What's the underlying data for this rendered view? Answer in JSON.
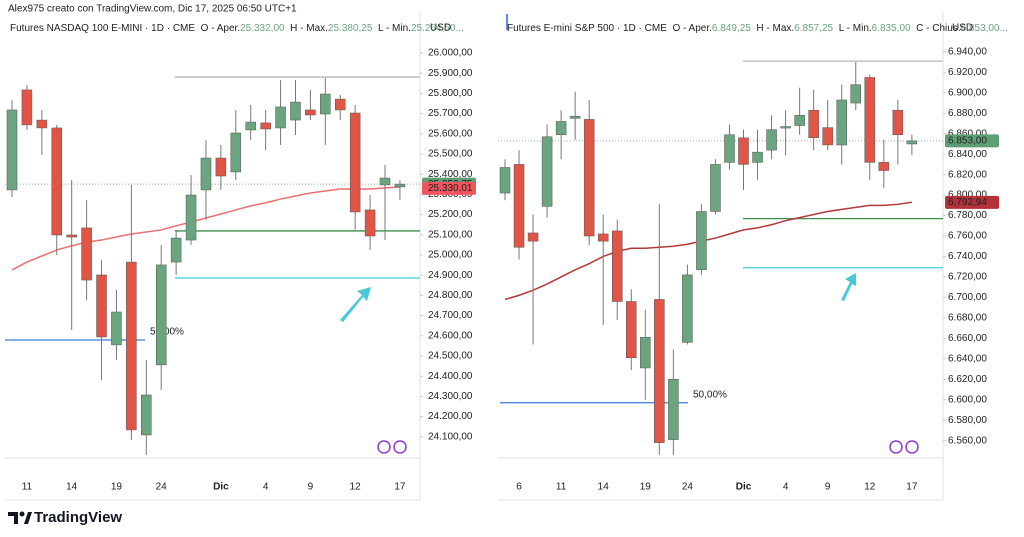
{
  "header": {
    "credit": "Alex975 creato con TradingView.com, Dic 17, 2025 06:50 UTC+1"
  },
  "footer": {
    "brand": "TradingView"
  },
  "chart_data": [
    {
      "type": "candlestick",
      "title": "Futures NASDAQ 100 E-MINI · 1D · CME",
      "ohlc_text": [
        {
          "label": "O - Aper.",
          "value": "25.332,00"
        },
        {
          "label": "H - Max.",
          "value": "25.380,25"
        },
        {
          "label": "L - Min.",
          "value": "25.264,50..."
        }
      ],
      "currency": "USD",
      "categories": [
        null,
        "11",
        null,
        null,
        "14",
        null,
        null,
        "19",
        null,
        null,
        "24",
        null,
        null,
        null,
        "Dic",
        null,
        null,
        "4",
        null,
        null,
        "9",
        null,
        null,
        "12",
        null,
        null,
        "17"
      ],
      "open": [
        25322,
        25817,
        25668,
        25629,
        25099,
        25134,
        24901,
        24555,
        24965,
        24109,
        24456,
        24965,
        25074,
        25322,
        25480,
        25411,
        25619,
        25654,
        25629,
        25668,
        25718,
        25698,
        25772,
        25703,
        25223,
        25347,
        25337
      ],
      "high": [
        25767,
        25842,
        25718,
        25644,
        25371,
        25272,
        24975,
        24827,
        25347,
        24480,
        25050,
        25124,
        25396,
        25569,
        25545,
        25718,
        25743,
        25718,
        25866,
        25866,
        25817,
        25876,
        25792,
        25743,
        25297,
        25446,
        25371
      ],
      "low": [
        25287,
        25619,
        25495,
        25000,
        24629,
        24777,
        24381,
        24480,
        24084,
        24010,
        24332,
        24901,
        25050,
        25173,
        25322,
        25371,
        25569,
        25520,
        25545,
        25594,
        25668,
        25545,
        25668,
        25124,
        25025,
        25074,
        25272
      ],
      "close": [
        25718,
        25644,
        25629,
        25099,
        25089,
        24876,
        24594,
        24718,
        24134,
        24307,
        24951,
        25084,
        25297,
        25480,
        25391,
        25604,
        25658,
        25624,
        25733,
        25757,
        25693,
        25797,
        25718,
        25213,
        25094,
        25381,
        25351
      ],
      "ma": [
        24926,
        24965,
        24995,
        25025,
        25045,
        25064,
        25074,
        25089,
        25104,
        25114,
        25124,
        25144,
        25163,
        25183,
        25203,
        25223,
        25243,
        25258,
        25277,
        25292,
        25307,
        25317,
        25327,
        25327,
        25327,
        25332,
        25337
      ],
      "up_color": "#6aa57f",
      "down_color": "#e05545",
      "ma_color": "#ec6f72",
      "levels": [
        {
          "value": 25881,
          "color": "#b5b5b5"
        },
        {
          "value": 25119,
          "color": "#3f8f4c"
        },
        {
          "value": 24886,
          "color": "#3ccfd0"
        },
        {
          "value": 24579,
          "color": "#3b7dd8",
          "label": "50,00%"
        }
      ],
      "last_price": {
        "value": 25350.75,
        "label": "25.350,75",
        "color": "#5e9e74"
      },
      "ma_last": {
        "value": 25330.01,
        "label": "25.330,01",
        "color": "#f0555e"
      },
      "ylim": [
        23995,
        26203
      ],
      "yticks": [
        {
          "value": 24100,
          "label": "24.100,00"
        },
        {
          "value": 24200,
          "label": "24.200,00"
        },
        {
          "value": 24300,
          "label": "24.300,00"
        },
        {
          "value": 24400,
          "label": "24.400,00"
        },
        {
          "value": 24500,
          "label": "24.500,00"
        },
        {
          "value": 24600,
          "label": "24.600,00"
        },
        {
          "value": 24700,
          "label": "24.700,00"
        },
        {
          "value": 24800,
          "label": "24.800,00"
        },
        {
          "value": 24900,
          "label": "24.900,00"
        },
        {
          "value": 25000,
          "label": "25.000,00"
        },
        {
          "value": 25100,
          "label": "25.100,00"
        },
        {
          "value": 25200,
          "label": "25.200,00"
        },
        {
          "value": 25300,
          "label": "25.300,00"
        },
        {
          "value": 25400,
          "label": "25.400,00"
        },
        {
          "value": 25500,
          "label": "25.500,00"
        },
        {
          "value": 25600,
          "label": "25.600,00"
        },
        {
          "value": 25700,
          "label": "25.700,00"
        },
        {
          "value": 25800,
          "label": "25.800,00"
        },
        {
          "value": 25900,
          "label": "25.900,00"
        },
        {
          "value": 26000,
          "label": "26.000,00"
        }
      ]
    },
    {
      "type": "candlestick",
      "title": "Futures E-mini S&P 500 · 1D · CME",
      "ohlc_text": [
        {
          "label": "O - Aper.",
          "value": "6.849,25"
        },
        {
          "label": "H - Max.",
          "value": "6.857,25"
        },
        {
          "label": "L - Min.",
          "value": "6.835,00"
        },
        {
          "label": "C - Chius.",
          "value": "6.853,00..."
        }
      ],
      "currency": "USD",
      "categories": [
        null,
        "6",
        null,
        null,
        "11",
        null,
        null,
        "14",
        null,
        null,
        "19",
        null,
        null,
        "24",
        null,
        null,
        null,
        "Dic",
        null,
        null,
        "4",
        null,
        null,
        "9",
        null,
        null,
        "12",
        null,
        null,
        "17"
      ],
      "open": [
        6802,
        6830,
        6763,
        6789,
        6859,
        6875,
        6874,
        6762,
        6765,
        6696,
        6631,
        6698,
        6561,
        6656,
        6727,
        6784,
        6832,
        6856,
        6832,
        6844,
        6866,
        6868,
        6883,
        6866,
        6849,
        6890,
        6915,
        6832,
        6883,
        6850
      ],
      "high": [
        6835,
        6844,
        6781,
        6869,
        6883,
        6901,
        6893,
        6781,
        6776,
        6708,
        6688,
        6791,
        6649,
        6732,
        6791,
        6835,
        6869,
        6864,
        6864,
        6878,
        6883,
        6905,
        6903,
        6893,
        6908,
        6930,
        6918,
        6854,
        6893,
        6859
      ],
      "low": [
        6795,
        6737,
        6654,
        6778,
        6835,
        6854,
        6751,
        6673,
        6678,
        6629,
        6600,
        6546,
        6546,
        6654,
        6722,
        6781,
        6825,
        6805,
        6815,
        6835,
        6839,
        6859,
        6844,
        6844,
        6830,
        6883,
        6815,
        6807,
        6830,
        6839
      ],
      "close": [
        6827,
        6749,
        6755,
        6857,
        6872,
        6877,
        6760,
        6755,
        6696,
        6641,
        6661,
        6558,
        6620,
        6722,
        6784,
        6830,
        6859,
        6830,
        6842,
        6864,
        6867,
        6878,
        6856,
        6849,
        6893,
        6908,
        6832,
        6824,
        6859,
        6853
      ],
      "ma": [
        6698,
        6702,
        6707,
        6713,
        6720,
        6727,
        6733,
        6740,
        6745,
        6748,
        6748,
        6749,
        6750,
        6752,
        6755,
        6758,
        6762,
        6766,
        6768,
        6771,
        6775,
        6778,
        6781,
        6784,
        6786,
        6788,
        6790,
        6790,
        6791,
        6793
      ],
      "up_color": "#6aa57f",
      "down_color": "#e05545",
      "ma_color": "#b33838",
      "levels": [
        {
          "value": 6931,
          "color": "#b5b5b5"
        },
        {
          "value": 6777,
          "color": "#3f8f4c"
        },
        {
          "value": 6729,
          "color": "#3ccfd0"
        },
        {
          "value": 6597,
          "color": "#3b7dd8",
          "label": "50,00%"
        }
      ],
      "last_price": {
        "value": 6853,
        "label": "6.853,00",
        "color": "#5e9e74"
      },
      "ma_last": {
        "value": 6792.94,
        "label": "6.792,94",
        "color": "#b3323a"
      },
      "ylim": [
        6543,
        6979
      ],
      "yticks": [
        {
          "value": 6560,
          "label": "6.560,00"
        },
        {
          "value": 6580,
          "label": "6.580,00"
        },
        {
          "value": 6600,
          "label": "6.600,00"
        },
        {
          "value": 6620,
          "label": "6.620,00"
        },
        {
          "value": 6640,
          "label": "6.640,00"
        },
        {
          "value": 6660,
          "label": "6.660,00"
        },
        {
          "value": 6680,
          "label": "6.680,00"
        },
        {
          "value": 6700,
          "label": "6.700,00"
        },
        {
          "value": 6720,
          "label": "6.720,00"
        },
        {
          "value": 6740,
          "label": "6.740,00"
        },
        {
          "value": 6760,
          "label": "6.760,00"
        },
        {
          "value": 6780,
          "label": "6.780,00"
        },
        {
          "value": 6800,
          "label": "6.800,00"
        },
        {
          "value": 6820,
          "label": "6.820,00"
        },
        {
          "value": 6840,
          "label": "6.840,00"
        },
        {
          "value": 6860,
          "label": "6.860,00"
        },
        {
          "value": 6880,
          "label": "6.880,00"
        },
        {
          "value": 6900,
          "label": "6.900,00"
        },
        {
          "value": 6920,
          "label": "6.920,00"
        },
        {
          "value": 6940,
          "label": "6.940,00"
        }
      ]
    }
  ]
}
